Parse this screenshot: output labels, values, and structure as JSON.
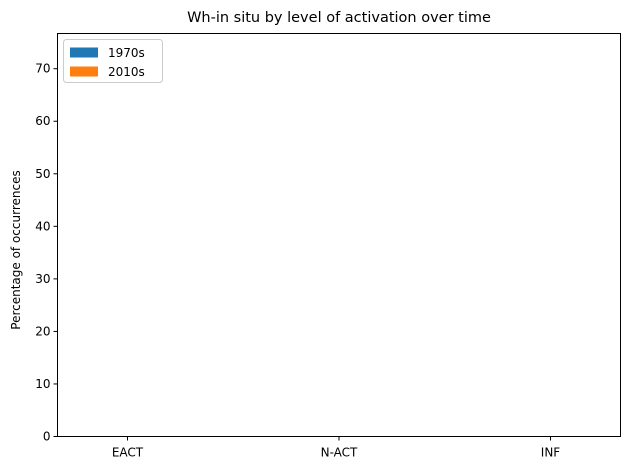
{
  "chart_data": {
    "type": "bar",
    "title": "Wh-in situ by level of activation over time",
    "xlabel": "",
    "ylabel": "Percentage of occurrences",
    "categories": [
      "EACT",
      "N-ACT",
      "INF"
    ],
    "series": [
      {
        "name": "1970s",
        "values": [
          0,
          0,
          0
        ],
        "color": "#1f77b4"
      },
      {
        "name": "2010s",
        "values": [
          0,
          0,
          0
        ],
        "color": "#ff7f0e"
      }
    ],
    "ylim": [
      0,
      76.7
    ],
    "yticks": [
      0,
      10,
      20,
      30,
      40,
      50,
      60,
      70
    ],
    "grid": false,
    "legend_position": "top-left"
  }
}
